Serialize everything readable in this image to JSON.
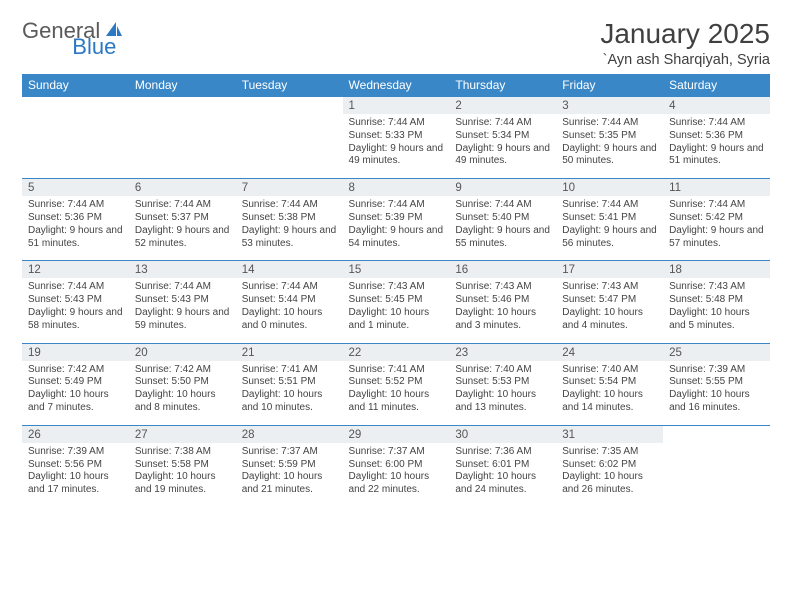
{
  "brand": {
    "part1": "General",
    "part2": "Blue"
  },
  "title": "January 2025",
  "location": "`Ayn ash Sharqiyah, Syria",
  "colors": {
    "header_bg": "#3a87c8",
    "header_text": "#ffffff",
    "daynum_bg": "#eceff1",
    "rule": "#3a87c8",
    "body_text": "#444444",
    "title_text": "#404040",
    "logo_gray": "#5a5a5a",
    "logo_blue": "#2b79c2",
    "page_bg": "#ffffff"
  },
  "typography": {
    "title_fontsize": 28,
    "location_fontsize": 14.5,
    "dow_fontsize": 12,
    "daynum_fontsize": 11.5,
    "detail_fontsize": 10
  },
  "days_of_week": [
    "Sunday",
    "Monday",
    "Tuesday",
    "Wednesday",
    "Thursday",
    "Friday",
    "Saturday"
  ],
  "weeks": [
    [
      null,
      null,
      null,
      {
        "n": "1",
        "sunrise": "7:44 AM",
        "sunset": "5:33 PM",
        "dl": "9 hours and 49 minutes."
      },
      {
        "n": "2",
        "sunrise": "7:44 AM",
        "sunset": "5:34 PM",
        "dl": "9 hours and 49 minutes."
      },
      {
        "n": "3",
        "sunrise": "7:44 AM",
        "sunset": "5:35 PM",
        "dl": "9 hours and 50 minutes."
      },
      {
        "n": "4",
        "sunrise": "7:44 AM",
        "sunset": "5:36 PM",
        "dl": "9 hours and 51 minutes."
      }
    ],
    [
      {
        "n": "5",
        "sunrise": "7:44 AM",
        "sunset": "5:36 PM",
        "dl": "9 hours and 51 minutes."
      },
      {
        "n": "6",
        "sunrise": "7:44 AM",
        "sunset": "5:37 PM",
        "dl": "9 hours and 52 minutes."
      },
      {
        "n": "7",
        "sunrise": "7:44 AM",
        "sunset": "5:38 PM",
        "dl": "9 hours and 53 minutes."
      },
      {
        "n": "8",
        "sunrise": "7:44 AM",
        "sunset": "5:39 PM",
        "dl": "9 hours and 54 minutes."
      },
      {
        "n": "9",
        "sunrise": "7:44 AM",
        "sunset": "5:40 PM",
        "dl": "9 hours and 55 minutes."
      },
      {
        "n": "10",
        "sunrise": "7:44 AM",
        "sunset": "5:41 PM",
        "dl": "9 hours and 56 minutes."
      },
      {
        "n": "11",
        "sunrise": "7:44 AM",
        "sunset": "5:42 PM",
        "dl": "9 hours and 57 minutes."
      }
    ],
    [
      {
        "n": "12",
        "sunrise": "7:44 AM",
        "sunset": "5:43 PM",
        "dl": "9 hours and 58 minutes."
      },
      {
        "n": "13",
        "sunrise": "7:44 AM",
        "sunset": "5:43 PM",
        "dl": "9 hours and 59 minutes."
      },
      {
        "n": "14",
        "sunrise": "7:44 AM",
        "sunset": "5:44 PM",
        "dl": "10 hours and 0 minutes."
      },
      {
        "n": "15",
        "sunrise": "7:43 AM",
        "sunset": "5:45 PM",
        "dl": "10 hours and 1 minute."
      },
      {
        "n": "16",
        "sunrise": "7:43 AM",
        "sunset": "5:46 PM",
        "dl": "10 hours and 3 minutes."
      },
      {
        "n": "17",
        "sunrise": "7:43 AM",
        "sunset": "5:47 PM",
        "dl": "10 hours and 4 minutes."
      },
      {
        "n": "18",
        "sunrise": "7:43 AM",
        "sunset": "5:48 PM",
        "dl": "10 hours and 5 minutes."
      }
    ],
    [
      {
        "n": "19",
        "sunrise": "7:42 AM",
        "sunset": "5:49 PM",
        "dl": "10 hours and 7 minutes."
      },
      {
        "n": "20",
        "sunrise": "7:42 AM",
        "sunset": "5:50 PM",
        "dl": "10 hours and 8 minutes."
      },
      {
        "n": "21",
        "sunrise": "7:41 AM",
        "sunset": "5:51 PM",
        "dl": "10 hours and 10 minutes."
      },
      {
        "n": "22",
        "sunrise": "7:41 AM",
        "sunset": "5:52 PM",
        "dl": "10 hours and 11 minutes."
      },
      {
        "n": "23",
        "sunrise": "7:40 AM",
        "sunset": "5:53 PM",
        "dl": "10 hours and 13 minutes."
      },
      {
        "n": "24",
        "sunrise": "7:40 AM",
        "sunset": "5:54 PM",
        "dl": "10 hours and 14 minutes."
      },
      {
        "n": "25",
        "sunrise": "7:39 AM",
        "sunset": "5:55 PM",
        "dl": "10 hours and 16 minutes."
      }
    ],
    [
      {
        "n": "26",
        "sunrise": "7:39 AM",
        "sunset": "5:56 PM",
        "dl": "10 hours and 17 minutes."
      },
      {
        "n": "27",
        "sunrise": "7:38 AM",
        "sunset": "5:58 PM",
        "dl": "10 hours and 19 minutes."
      },
      {
        "n": "28",
        "sunrise": "7:37 AM",
        "sunset": "5:59 PM",
        "dl": "10 hours and 21 minutes."
      },
      {
        "n": "29",
        "sunrise": "7:37 AM",
        "sunset": "6:00 PM",
        "dl": "10 hours and 22 minutes."
      },
      {
        "n": "30",
        "sunrise": "7:36 AM",
        "sunset": "6:01 PM",
        "dl": "10 hours and 24 minutes."
      },
      {
        "n": "31",
        "sunrise": "7:35 AM",
        "sunset": "6:02 PM",
        "dl": "10 hours and 26 minutes."
      },
      null
    ]
  ],
  "labels": {
    "sunrise": "Sunrise:",
    "sunset": "Sunset:",
    "daylight": "Daylight:"
  }
}
